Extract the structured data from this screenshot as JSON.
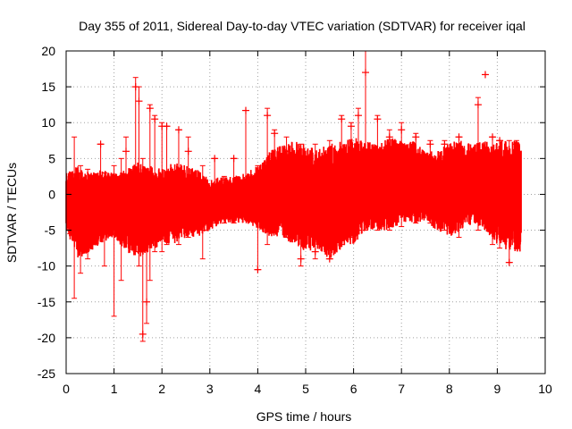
{
  "chart_data": {
    "type": "scatter",
    "title": "Day 355 of 2011, Sidereal Day-to-day VTEC variation (SDTVAR) for receiver iqal",
    "xlabel": "GPS time / hours",
    "ylabel": "SDTVAR / TECUs",
    "xlim": [
      0,
      10
    ],
    "ylim": [
      -25,
      20
    ],
    "x_ticks": [
      "0",
      "1",
      "2",
      "3",
      "4",
      "5",
      "6",
      "7",
      "8",
      "9",
      "10"
    ],
    "y_ticks": [
      "-25",
      "-20",
      "-15",
      "-10",
      "-5",
      "0",
      "5",
      "10",
      "15",
      "20"
    ],
    "grid": true,
    "series_color": "#ff0000",
    "marker": "plus-with-errorbars",
    "envelope": {
      "x": [
        0.0,
        0.25,
        0.5,
        0.75,
        1.0,
        1.25,
        1.5,
        1.75,
        2.0,
        2.25,
        2.5,
        2.75,
        3.0,
        3.25,
        3.5,
        3.75,
        4.0,
        4.25,
        4.5,
        4.75,
        5.0,
        5.25,
        5.5,
        5.75,
        6.0,
        6.25,
        6.5,
        6.75,
        7.0,
        7.25,
        7.5,
        7.75,
        8.0,
        8.25,
        8.5,
        8.75,
        9.0,
        9.25,
        9.5
      ],
      "upper": [
        3,
        4,
        3,
        3.5,
        3,
        3.5,
        4.5,
        4,
        3.5,
        4.5,
        4,
        3.5,
        2,
        2.5,
        2.5,
        3,
        4,
        6,
        7,
        7.5,
        7,
        6.5,
        7,
        7.5,
        8,
        7.5,
        7,
        8,
        7.5,
        7.5,
        6,
        6,
        7.5,
        7.5,
        7,
        7.5,
        7.5,
        7.5,
        7.5
      ],
      "lower": [
        -5,
        -9,
        -8,
        -7,
        -6,
        -8,
        -9,
        -8,
        -7,
        -7,
        -6,
        -6,
        -5,
        -4,
        -4,
        -4,
        -5,
        -6,
        -6,
        -7,
        -8,
        -8,
        -9,
        -8,
        -7,
        -5,
        -5,
        -5,
        -4,
        -4,
        -4,
        -5,
        -6,
        -5,
        -4,
        -5,
        -7,
        -8,
        -8
      ]
    },
    "points": [
      {
        "x": 0.08,
        "y": -2.5,
        "lo": -5.5,
        "hi": 2.0
      },
      {
        "x": 0.17,
        "y": 0.5,
        "lo": -14.5,
        "hi": 8.0
      },
      {
        "x": 0.3,
        "y": -1.0,
        "lo": -11.0,
        "hi": 4.0
      },
      {
        "x": 0.45,
        "y": -2.0,
        "lo": -9.0,
        "hi": 3.5
      },
      {
        "x": 0.72,
        "y": 7.0,
        "lo": 0.0,
        "hi": 7.0
      },
      {
        "x": 0.8,
        "y": -3.0,
        "lo": -10.0,
        "hi": 3.0
      },
      {
        "x": 1.0,
        "y": -4.0,
        "lo": -17.0,
        "hi": 4.0
      },
      {
        "x": 1.15,
        "y": -2.0,
        "lo": -12.0,
        "hi": 5.0
      },
      {
        "x": 1.25,
        "y": 6.0,
        "lo": -5.0,
        "hi": 8.0
      },
      {
        "x": 1.45,
        "y": 15.0,
        "lo": -8.0,
        "hi": 16.3
      },
      {
        "x": 1.52,
        "y": 13.0,
        "lo": -10.0,
        "hi": 15.0
      },
      {
        "x": 1.6,
        "y": -19.5,
        "lo": -20.5,
        "hi": 5.0
      },
      {
        "x": 1.68,
        "y": -15.0,
        "lo": -18.0,
        "hi": 3.0
      },
      {
        "x": 1.75,
        "y": 12.0,
        "lo": -12.0,
        "hi": 12.5
      },
      {
        "x": 1.85,
        "y": 10.5,
        "lo": -8.0,
        "hi": 11.0
      },
      {
        "x": 2.0,
        "y": 9.5,
        "lo": -8.0,
        "hi": 10.0
      },
      {
        "x": 2.1,
        "y": 9.5,
        "lo": -7.0,
        "hi": 9.5
      },
      {
        "x": 2.35,
        "y": 9.0,
        "lo": -7.0,
        "hi": 9.0
      },
      {
        "x": 2.55,
        "y": 6.0,
        "lo": -6.0,
        "hi": 8.0
      },
      {
        "x": 2.85,
        "y": -5.0,
        "lo": -9.0,
        "hi": 4.0
      },
      {
        "x": 3.1,
        "y": 5.0,
        "lo": -4.0,
        "hi": 5.0
      },
      {
        "x": 3.3,
        "y": 2.0,
        "lo": -4.0,
        "hi": 2.5
      },
      {
        "x": 3.5,
        "y": 5.0,
        "lo": -4.0,
        "hi": 5.0
      },
      {
        "x": 3.75,
        "y": 11.7,
        "lo": -2.0,
        "hi": 11.7
      },
      {
        "x": 4.0,
        "y": -10.5,
        "lo": -10.5,
        "hi": 4.0
      },
      {
        "x": 4.2,
        "y": 11.0,
        "lo": -7.0,
        "hi": 12.0
      },
      {
        "x": 4.35,
        "y": 8.5,
        "lo": -5.0,
        "hi": 9.0
      },
      {
        "x": 4.6,
        "y": 6.0,
        "lo": -6.0,
        "hi": 8.0
      },
      {
        "x": 4.9,
        "y": -9.0,
        "lo": -10.0,
        "hi": 7.0
      },
      {
        "x": 5.2,
        "y": -8.0,
        "lo": -9.0,
        "hi": 7.0
      },
      {
        "x": 5.5,
        "y": -9.0,
        "lo": -9.0,
        "hi": 7.5
      },
      {
        "x": 5.75,
        "y": 10.5,
        "lo": -7.0,
        "hi": 11.0
      },
      {
        "x": 5.95,
        "y": 9.5,
        "lo": -6.0,
        "hi": 10.0
      },
      {
        "x": 6.1,
        "y": 11.0,
        "lo": -5.0,
        "hi": 12.0
      },
      {
        "x": 6.25,
        "y": 17.0,
        "lo": -5.0,
        "hi": 20.0
      },
      {
        "x": 6.5,
        "y": 10.5,
        "lo": -5.0,
        "hi": 11.0
      },
      {
        "x": 6.75,
        "y": 8.0,
        "lo": -5.0,
        "hi": 9.0
      },
      {
        "x": 7.0,
        "y": 9.0,
        "lo": -4.5,
        "hi": 10.0
      },
      {
        "x": 7.3,
        "y": 8.0,
        "lo": -4.0,
        "hi": 8.5
      },
      {
        "x": 7.6,
        "y": 7.0,
        "lo": -4.0,
        "hi": 7.5
      },
      {
        "x": 7.9,
        "y": 7.0,
        "lo": -5.0,
        "hi": 7.5
      },
      {
        "x": 8.2,
        "y": 8.0,
        "lo": -6.0,
        "hi": 8.0
      },
      {
        "x": 8.6,
        "y": 12.5,
        "lo": -5.0,
        "hi": 13.5
      },
      {
        "x": 8.75,
        "y": 16.7,
        "lo": 16.7,
        "hi": 16.7
      },
      {
        "x": 8.9,
        "y": 8.0,
        "lo": -7.0,
        "hi": 8.0
      },
      {
        "x": 9.05,
        "y": 7.5,
        "lo": -7.5,
        "hi": 7.5
      },
      {
        "x": 9.25,
        "y": -9.5,
        "lo": -9.5,
        "hi": 7.5
      },
      {
        "x": 9.4,
        "y": 7.0,
        "lo": -7.5,
        "hi": 7.5
      }
    ]
  }
}
